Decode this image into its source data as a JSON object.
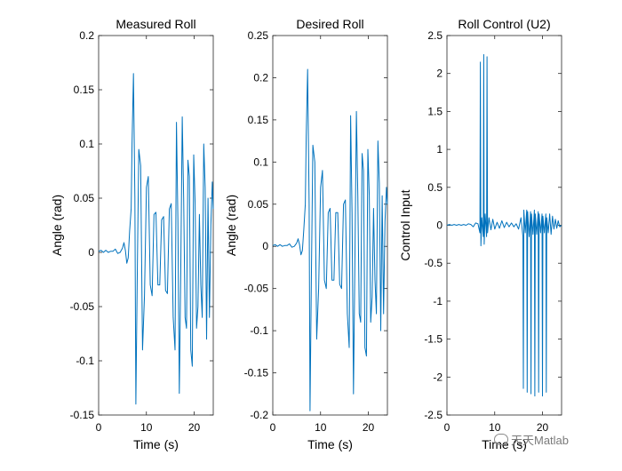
{
  "chart_data": [
    {
      "type": "line",
      "title": "Measured Roll",
      "xlabel": "Time (s)",
      "ylabel": "Angle (rad)",
      "xlim": [
        0,
        24
      ],
      "ylim": [
        -0.15,
        0.2
      ],
      "xticks": [
        0,
        10,
        20
      ],
      "xtick_labels": [
        "0",
        "10",
        "20"
      ],
      "yticks": [
        -0.15,
        -0.1,
        -0.05,
        0,
        0.05,
        0.1,
        0.15,
        0.2
      ],
      "ytick_labels": [
        "-0.15",
        "-0.1",
        "-0.05",
        "0",
        "0.05",
        "0.1",
        "0.15",
        "0.2"
      ],
      "series": [
        {
          "name": "Measured Roll",
          "color": "#0072BD",
          "x": [
            0,
            0.5,
            1,
            1.5,
            2,
            2.5,
            3,
            3.5,
            4,
            4.5,
            5,
            5.3,
            5.6,
            5.9,
            6.2,
            6.5,
            6.8,
            7.0,
            7.3,
            7.6,
            7.8,
            8.1,
            8.4,
            8.8,
            9.2,
            9.6,
            10.0,
            10.4,
            10.8,
            11.2,
            11.6,
            12.0,
            12.4,
            12.8,
            13.2,
            13.6,
            14.0,
            14.4,
            14.8,
            15.2,
            15.6,
            16.0,
            16.3,
            16.6,
            16.9,
            17.2,
            17.5,
            17.8,
            18.1,
            18.4,
            18.7,
            19.0,
            19.3,
            19.6,
            19.9,
            20.2,
            20.5,
            20.8,
            21.1,
            21.4,
            21.7,
            22.0,
            22.3,
            22.6,
            22.9,
            23.2,
            23.5,
            23.8,
            24.0
          ],
          "y": [
            0.001,
            0.002,
            0.0,
            0.002,
            0.0,
            0.001,
            0.001,
            0.003,
            -0.001,
            0.0,
            0.004,
            0.009,
            0.002,
            -0.01,
            -0.005,
            0.02,
            0.04,
            0.1,
            0.165,
            0.05,
            -0.14,
            -0.02,
            0.095,
            0.08,
            -0.09,
            -0.04,
            0.06,
            0.07,
            -0.03,
            -0.04,
            0.035,
            0.037,
            -0.03,
            -0.03,
            0.03,
            0.033,
            -0.035,
            -0.038,
            0.04,
            0.045,
            -0.06,
            -0.09,
            0.12,
            0.03,
            -0.13,
            -0.02,
            0.125,
            0.05,
            -0.06,
            -0.07,
            0.085,
            0.07,
            -0.09,
            -0.105,
            0.09,
            0.045,
            -0.07,
            -0.05,
            0.035,
            -0.03,
            -0.06,
            0.1,
            0.06,
            -0.08,
            0.05,
            -0.06,
            0.025,
            0.065,
            0.04
          ]
        }
      ]
    },
    {
      "type": "line",
      "title": "Desired Roll",
      "xlabel": "Time (s)",
      "ylabel": "Angle (rad)",
      "xlim": [
        0,
        24
      ],
      "ylim": [
        -0.2,
        0.25
      ],
      "xticks": [
        0,
        10,
        20
      ],
      "xtick_labels": [
        "0",
        "10",
        "20"
      ],
      "yticks": [
        -0.2,
        -0.15,
        -0.1,
        -0.05,
        0,
        0.05,
        0.1,
        0.15,
        0.2,
        0.25
      ],
      "ytick_labels": [
        "-0.2",
        "-0.15",
        "-0.1",
        "-0.05",
        "0",
        "0.05",
        "0.1",
        "0.15",
        "0.2",
        "0.25"
      ],
      "series": [
        {
          "name": "Desired Roll",
          "color": "#0072BD",
          "x": [
            0,
            0.5,
            1,
            1.5,
            2,
            2.5,
            3,
            3.5,
            4,
            4.5,
            5,
            5.3,
            5.6,
            5.9,
            6.2,
            6.5,
            6.8,
            7.0,
            7.3,
            7.6,
            7.8,
            8.1,
            8.4,
            8.8,
            9.2,
            9.6,
            10.0,
            10.4,
            10.8,
            11.2,
            11.6,
            12.0,
            12.4,
            12.8,
            13.2,
            13.6,
            14.0,
            14.4,
            14.8,
            15.2,
            15.6,
            16.0,
            16.3,
            16.6,
            16.9,
            17.2,
            17.5,
            17.8,
            18.1,
            18.4,
            18.7,
            19.0,
            19.3,
            19.6,
            19.9,
            20.2,
            20.5,
            20.8,
            21.1,
            21.4,
            21.7,
            22.0,
            22.3,
            22.6,
            22.9,
            23.2,
            23.5,
            23.8,
            24.0
          ],
          "y": [
            0.001,
            0.002,
            0.0,
            0.002,
            0.0,
            0.001,
            0.001,
            0.003,
            -0.001,
            0.0,
            0.004,
            0.009,
            0.002,
            -0.01,
            -0.005,
            0.02,
            0.05,
            0.13,
            0.21,
            0.05,
            -0.195,
            -0.03,
            0.12,
            0.1,
            -0.11,
            -0.05,
            0.07,
            0.09,
            -0.04,
            -0.05,
            0.04,
            0.045,
            -0.04,
            -0.04,
            0.04,
            0.04,
            -0.045,
            -0.05,
            0.05,
            0.055,
            -0.08,
            -0.12,
            0.155,
            0.04,
            -0.175,
            -0.02,
            0.16,
            0.06,
            -0.08,
            -0.09,
            0.11,
            0.09,
            -0.12,
            -0.13,
            0.115,
            0.06,
            -0.09,
            -0.06,
            0.045,
            -0.04,
            -0.08,
            0.125,
            0.075,
            -0.1,
            0.06,
            -0.08,
            0.03,
            0.07,
            0.05
          ]
        }
      ]
    },
    {
      "type": "line",
      "title": "Roll Control (U2)",
      "xlabel": "Time (s)",
      "ylabel": "Control Input",
      "xlim": [
        0,
        24
      ],
      "ylim": [
        -2.5,
        2.5
      ],
      "xticks": [
        0,
        10,
        20
      ],
      "xtick_labels": [
        "0",
        "10",
        "20"
      ],
      "yticks": [
        -2.5,
        -2,
        -1.5,
        -1,
        -0.5,
        0,
        0.5,
        1,
        1.5,
        2,
        2.5
      ],
      "ytick_labels": [
        "-2.5",
        "-2",
        "-1.5",
        "-1",
        "-0.5",
        "0",
        "0.5",
        "1",
        "1.5",
        "2",
        "2.5"
      ],
      "series": [
        {
          "name": "Roll Control (U2)",
          "color": "#0072BD",
          "x": [
            0,
            0.5,
            1,
            1.5,
            2,
            2.5,
            3,
            3.5,
            4,
            4.5,
            5,
            5.5,
            6,
            6.5,
            6.9,
            7.0,
            7.1,
            7.3,
            7.6,
            7.7,
            7.8,
            8.0,
            8.3,
            8.4,
            8.5,
            8.8,
            9.2,
            9.6,
            10.0,
            10.5,
            11.0,
            11.5,
            12.0,
            12.5,
            13.0,
            13.5,
            14.0,
            14.5,
            15.0,
            15.5,
            15.9,
            16.0,
            16.1,
            16.4,
            16.7,
            16.8,
            16.9,
            17.2,
            17.5,
            17.6,
            17.7,
            18.0,
            18.3,
            18.4,
            18.5,
            18.8,
            19.1,
            19.2,
            19.3,
            19.6,
            19.9,
            20.0,
            20.1,
            20.4,
            20.7,
            20.8,
            20.9,
            21.2,
            21.5,
            21.8,
            22.1,
            22.4,
            22.7,
            23.0,
            23.3,
            23.6,
            24.0
          ],
          "y": [
            0.0,
            0.01,
            0.0,
            0.01,
            0.0,
            0.01,
            0.0,
            0.01,
            0.0,
            0.02,
            0.01,
            -0.02,
            0.03,
            0.02,
            -0.1,
            2.15,
            -0.27,
            0.1,
            -0.15,
            2.25,
            -0.25,
            0.15,
            -0.15,
            2.22,
            -0.1,
            0.1,
            -0.06,
            0.08,
            -0.05,
            0.04,
            -0.04,
            0.06,
            -0.03,
            0.04,
            -0.02,
            0.03,
            -0.02,
            0.02,
            -0.05,
            0.1,
            -0.15,
            -2.15,
            0.2,
            -0.1,
            0.2,
            -2.2,
            0.18,
            -0.15,
            0.18,
            -2.22,
            0.15,
            -0.12,
            0.2,
            -2.25,
            0.15,
            -0.12,
            0.18,
            -2.2,
            0.15,
            -0.1,
            0.15,
            -2.25,
            0.12,
            -0.1,
            0.15,
            -2.2,
            0.1,
            -0.1,
            0.15,
            -0.12,
            0.12,
            -0.05,
            0.08,
            -0.04,
            0.06,
            -0.02,
            0.0
          ]
        }
      ]
    }
  ],
  "watermark": {
    "icon": "wechat-icon",
    "text": "天天Matlab"
  }
}
